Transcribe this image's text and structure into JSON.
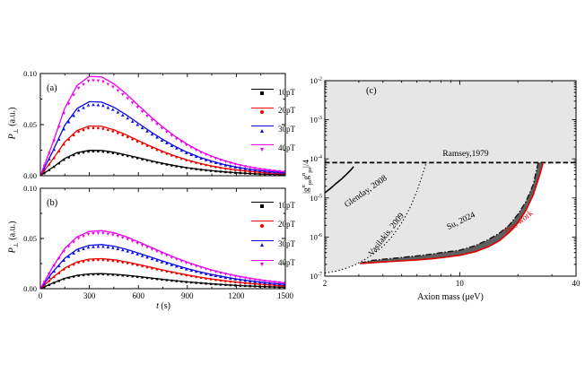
{
  "figure": {
    "panels": {
      "a": {
        "label": "(a)"
      },
      "b": {
        "label": "(b)"
      },
      "c": {
        "label": "(c)"
      }
    },
    "axis_labels": {
      "p_sym": "P",
      "p_sub": "⊥",
      "p_unit": " (a.u.)",
      "t_sym": "t",
      "t_unit": " (s)",
      "c_x": "Axion mass (μeV)",
      "c_y": {
        "p1": "|g",
        "sup": "n",
        "sub": "ps",
        "mid": "g",
        "p3": "|/4"
      }
    }
  },
  "chart_data": [
    {
      "type": "line",
      "panel": "(a)",
      "ylabel": "P⊥ (a.u.)",
      "xlabel": "t (s)",
      "xlim": [
        0,
        1500
      ],
      "ylim": [
        0,
        0.1
      ],
      "xticks": [
        0,
        300,
        600,
        900,
        1200,
        1500
      ],
      "xtick_labels_shown": false,
      "ytick_labels": [
        "0.00",
        "0.05",
        "0.10"
      ],
      "yticks": [
        0,
        0.05,
        0.1
      ],
      "grid": false,
      "legend_position": "upper right",
      "t_step": 75,
      "marker_ratio": 0.96,
      "series": [
        {
          "name": "10pT",
          "color": "#000000",
          "marker": "square",
          "values": [
            0,
            0.008,
            0.0169,
            0.0225,
            0.0248,
            0.0247,
            0.023,
            0.0204,
            0.0176,
            0.0148,
            0.0121,
            0.0098,
            0.0078,
            0.0062,
            0.0049,
            0.0038,
            0.0029,
            0.0022,
            0.0017,
            0.0013,
            0.001
          ]
        },
        {
          "name": "20pT",
          "color": "#ee0000",
          "marker": "circle",
          "values": [
            0,
            0.0158,
            0.0332,
            0.0442,
            0.0487,
            0.0483,
            0.045,
            0.04,
            0.0344,
            0.0289,
            0.0238,
            0.0193,
            0.0154,
            0.0122,
            0.0095,
            0.0074,
            0.0057,
            0.0044,
            0.0033,
            0.0025,
            0.0019
          ]
        },
        {
          "name": "30pT",
          "color": "#0a0ae0",
          "marker": "triangle-up",
          "values": [
            0,
            0.0235,
            0.0495,
            0.0658,
            0.0725,
            0.072,
            0.067,
            0.0596,
            0.0513,
            0.0431,
            0.0354,
            0.0287,
            0.0229,
            0.0181,
            0.0142,
            0.011,
            0.0085,
            0.0065,
            0.005,
            0.0038,
            0.0028
          ]
        },
        {
          "name": "40pT",
          "color": "#ee00ee",
          "marker": "triangle-down",
          "values": [
            0,
            0.0315,
            0.0664,
            0.0883,
            0.0973,
            0.0967,
            0.09,
            0.0801,
            0.0689,
            0.0578,
            0.0476,
            0.0385,
            0.0308,
            0.0243,
            0.019,
            0.0148,
            0.0114,
            0.0087,
            0.0066,
            0.005,
            0.0038
          ]
        }
      ]
    },
    {
      "type": "line",
      "panel": "(b)",
      "ylabel": "P⊥ (a.u.)",
      "xlabel": "t (s)",
      "xlim": [
        0,
        1500
      ],
      "ylim": [
        0,
        0.1
      ],
      "xticks": [
        0,
        300,
        600,
        900,
        1200,
        1500
      ],
      "xtick_labels": [
        "0",
        "300",
        "600",
        "900",
        "1200",
        "1500"
      ],
      "xtick_labels_shown": true,
      "ytick_labels": [
        "0.00",
        "0.05",
        "0.10"
      ],
      "yticks": [
        0,
        0.05,
        0.1
      ],
      "grid": false,
      "legend_position": "upper right",
      "t_step": 75,
      "marker_ratio": 0.96,
      "series": [
        {
          "name": "10pT",
          "color": "#000000",
          "marker": "square",
          "values": [
            0,
            0.0055,
            0.0104,
            0.0133,
            0.0147,
            0.015,
            0.0144,
            0.0134,
            0.0121,
            0.0107,
            0.0093,
            0.008,
            0.0068,
            0.0058,
            0.0048,
            0.004,
            0.0033,
            0.0027,
            0.0022,
            0.0018,
            0.0015
          ]
        },
        {
          "name": "20pT",
          "color": "#ee0000",
          "marker": "circle",
          "values": [
            0,
            0.0111,
            0.0207,
            0.0267,
            0.0295,
            0.0299,
            0.0288,
            0.0268,
            0.0242,
            0.0214,
            0.0187,
            0.0161,
            0.0137,
            0.0115,
            0.0096,
            0.008,
            0.0066,
            0.0054,
            0.0045,
            0.0036,
            0.0029
          ]
        },
        {
          "name": "30pT",
          "color": "#0a0ae0",
          "marker": "triangle-up",
          "values": [
            0,
            0.0163,
            0.0304,
            0.0392,
            0.0432,
            0.0439,
            0.0423,
            0.0393,
            0.0355,
            0.0314,
            0.0274,
            0.0236,
            0.02,
            0.0169,
            0.0141,
            0.0118,
            0.0097,
            0.008,
            0.0065,
            0.0053,
            0.0043
          ]
        },
        {
          "name": "40pT",
          "color": "#ee00ee",
          "marker": "triangle-down",
          "values": [
            0,
            0.0214,
            0.0401,
            0.0516,
            0.057,
            0.0579,
            0.0557,
            0.0518,
            0.0468,
            0.0414,
            0.0361,
            0.031,
            0.0264,
            0.0223,
            0.0186,
            0.0155,
            0.0128,
            0.0105,
            0.0086,
            0.007,
            0.0057
          ]
        }
      ]
    },
    {
      "type": "line",
      "panel": "(c)",
      "xlabel": "Axion mass (μeV)",
      "ylabel": "|g^n_ps g^n_ps|/4",
      "xscale": "log",
      "yscale": "log",
      "xlim": [
        2,
        40
      ],
      "ylim": [
        1e-07,
        0.01
      ],
      "xticks": [
        2,
        10,
        40
      ],
      "ytick_exponents": [
        -2,
        -3,
        -4,
        -5,
        -6,
        -7
      ],
      "excluded_fill": "#e6e6e6",
      "band_fill": "#606060",
      "grid": false,
      "series": [
        {
          "name": "Ramsey,1979",
          "style": "dashed",
          "color": "#000000",
          "points": [
            [
              2,
              8e-05
            ],
            [
              40,
              8e-05
            ]
          ]
        },
        {
          "name": "Glenday, 2008",
          "style": "solid",
          "color": "#000000",
          "points": [
            [
              2,
              1.35e-05
            ],
            [
              2.15,
              1.8e-05
            ],
            [
              2.3,
              2.4e-05
            ],
            [
              2.45,
              3.1e-05
            ],
            [
              2.6,
              4.1e-05
            ],
            [
              2.72,
              5.1e-05
            ],
            [
              2.82,
              6.3e-05
            ]
          ]
        },
        {
          "name": "Vasilakis, 2009",
          "style": "dotted",
          "color": "#000000",
          "points": [
            [
              2,
              1.2e-07
            ],
            [
              2.3,
              1.35e-07
            ],
            [
              2.6,
              1.6e-07
            ],
            [
              2.9,
              2e-07
            ],
            [
              3.2,
              2.6e-07
            ],
            [
              3.6,
              3.8e-07
            ],
            [
              4.0,
              5.8e-07
            ],
            [
              4.4,
              9.5e-07
            ],
            [
              4.8,
              1.7e-06
            ],
            [
              5.2,
              3.2e-06
            ],
            [
              5.6,
              6.5e-06
            ],
            [
              6.0,
              1.5e-05
            ],
            [
              6.4,
              3.8e-05
            ],
            [
              6.7,
              8e-05
            ]
          ]
        },
        {
          "name": "Su, 2024",
          "style": "dashdot",
          "color": "#111111",
          "points": [
            [
              3.05,
              2.15e-07
            ],
            [
              3.5,
              2.5e-07
            ],
            [
              4,
              2.7e-07
            ],
            [
              5,
              3e-07
            ],
            [
              6,
              3.3e-07
            ],
            [
              7,
              3.6e-07
            ],
            [
              8,
              4e-07
            ],
            [
              10,
              4.6e-07
            ],
            [
              12,
              6e-07
            ],
            [
              14,
              8.5e-07
            ],
            [
              16,
              1.25e-06
            ],
            [
              18,
              2e-06
            ],
            [
              20,
              3.8e-06
            ],
            [
              22,
              8e-06
            ],
            [
              24,
              2.2e-05
            ],
            [
              25.5,
              8e-05
            ]
          ]
        },
        {
          "name": "This work",
          "style": "solid",
          "color": "#e00000",
          "points": [
            [
              3.05,
              2.1e-07
            ],
            [
              3.5,
              2.2e-07
            ],
            [
              4,
              2.3e-07
            ],
            [
              5,
              2.45e-07
            ],
            [
              6,
              2.6e-07
            ],
            [
              7,
              2.75e-07
            ],
            [
              8,
              2.95e-07
            ],
            [
              10,
              3.4e-07
            ],
            [
              12,
              4.2e-07
            ],
            [
              14,
              5.6e-07
            ],
            [
              16,
              8e-07
            ],
            [
              18,
              1.3e-06
            ],
            [
              20,
              2.3e-06
            ],
            [
              22,
              4.8e-06
            ],
            [
              24,
              1.2e-05
            ],
            [
              26,
              4e-05
            ],
            [
              27,
              8e-05
            ]
          ]
        }
      ]
    }
  ]
}
